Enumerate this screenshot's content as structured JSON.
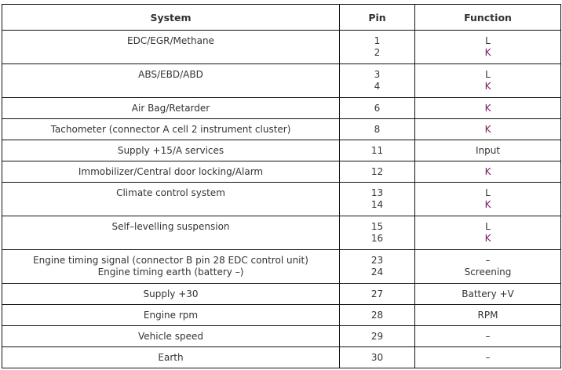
{
  "headers": {
    "system": "System",
    "pin": "Pin",
    "function": "Function"
  },
  "colors": {
    "text": "#333333",
    "k_function": "#7a1a5a"
  },
  "rows": [
    {
      "system": [
        "EDC/EGR/Methane"
      ],
      "pins": [
        "1",
        "2"
      ],
      "functions": [
        "L",
        "K"
      ]
    },
    {
      "system": [
        "ABS/EBD/ABD"
      ],
      "pins": [
        "3",
        "4"
      ],
      "functions": [
        "L",
        "K"
      ]
    },
    {
      "system": [
        "Air Bag/Retarder"
      ],
      "pins": [
        "6"
      ],
      "functions": [
        "K"
      ]
    },
    {
      "system": [
        "Tachometer (connector A cell 2 instrument cluster)"
      ],
      "pins": [
        "8"
      ],
      "functions": [
        "K"
      ]
    },
    {
      "system": [
        "Supply +15/A services"
      ],
      "pins": [
        "11"
      ],
      "functions": [
        "Input"
      ]
    },
    {
      "system": [
        "Immobilizer/Central door locking/Alarm"
      ],
      "pins": [
        "12"
      ],
      "functions": [
        "K"
      ]
    },
    {
      "system": [
        "Climate control system"
      ],
      "pins": [
        "13",
        "14"
      ],
      "functions": [
        "L",
        "K"
      ]
    },
    {
      "system": [
        "Self–levelling suspension"
      ],
      "pins": [
        "15",
        "16"
      ],
      "functions": [
        "L",
        "K"
      ]
    },
    {
      "system": [
        "Engine timing signal (connector B pin 28 EDC control unit)",
        "Engine timing earth (battery –)"
      ],
      "pins": [
        "23",
        "24"
      ],
      "functions": [
        "–",
        "Screening"
      ]
    },
    {
      "system": [
        "Supply +30"
      ],
      "pins": [
        "27"
      ],
      "functions": [
        "Battery +V"
      ]
    },
    {
      "system": [
        "Engine rpm"
      ],
      "pins": [
        "28"
      ],
      "functions": [
        "RPM"
      ]
    },
    {
      "system": [
        "Vehicle speed"
      ],
      "pins": [
        "29"
      ],
      "functions": [
        "–"
      ]
    },
    {
      "system": [
        "Earth"
      ],
      "pins": [
        "30"
      ],
      "functions": [
        "–"
      ]
    }
  ]
}
